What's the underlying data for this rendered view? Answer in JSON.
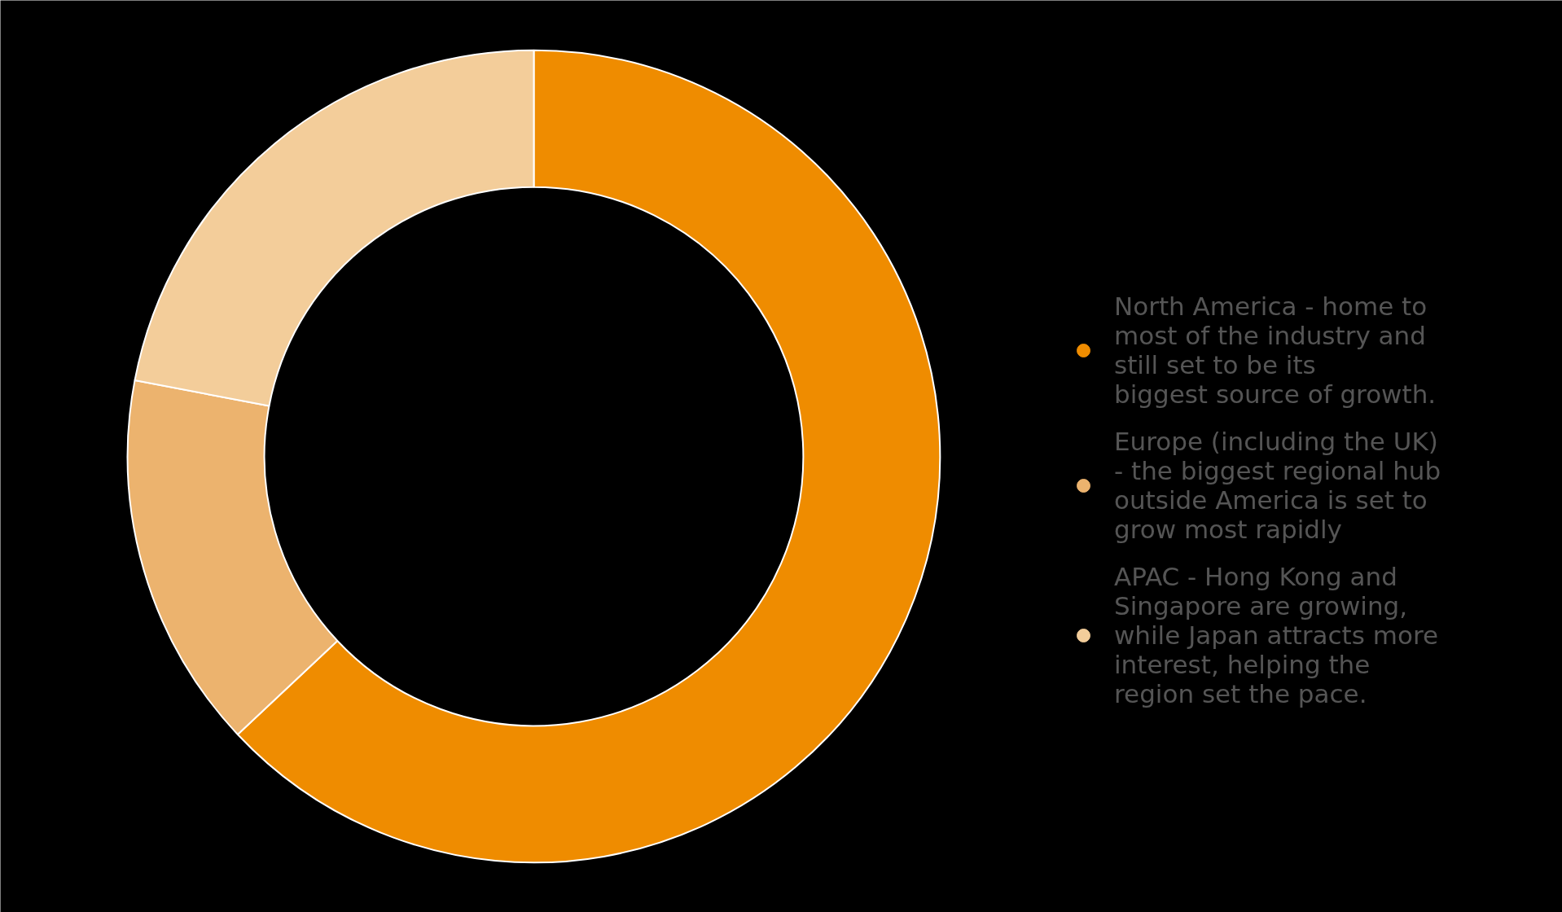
{
  "chart_data": {
    "type": "donut",
    "categories": [
      "North America - home to most of the industry and still set to be its biggest source of growth.",
      "Europe (including the UK) - the biggest regional hub outside America is set to grow most rapidly",
      "APAC - Hong Kong and Singapore are growing, while Japan attracts more interest, helping the region set the pace."
    ],
    "values": [
      63,
      15,
      22
    ],
    "colors": [
      "#ef8c00",
      "#ecb36e",
      "#f3cd9a"
    ],
    "legend": "right"
  }
}
